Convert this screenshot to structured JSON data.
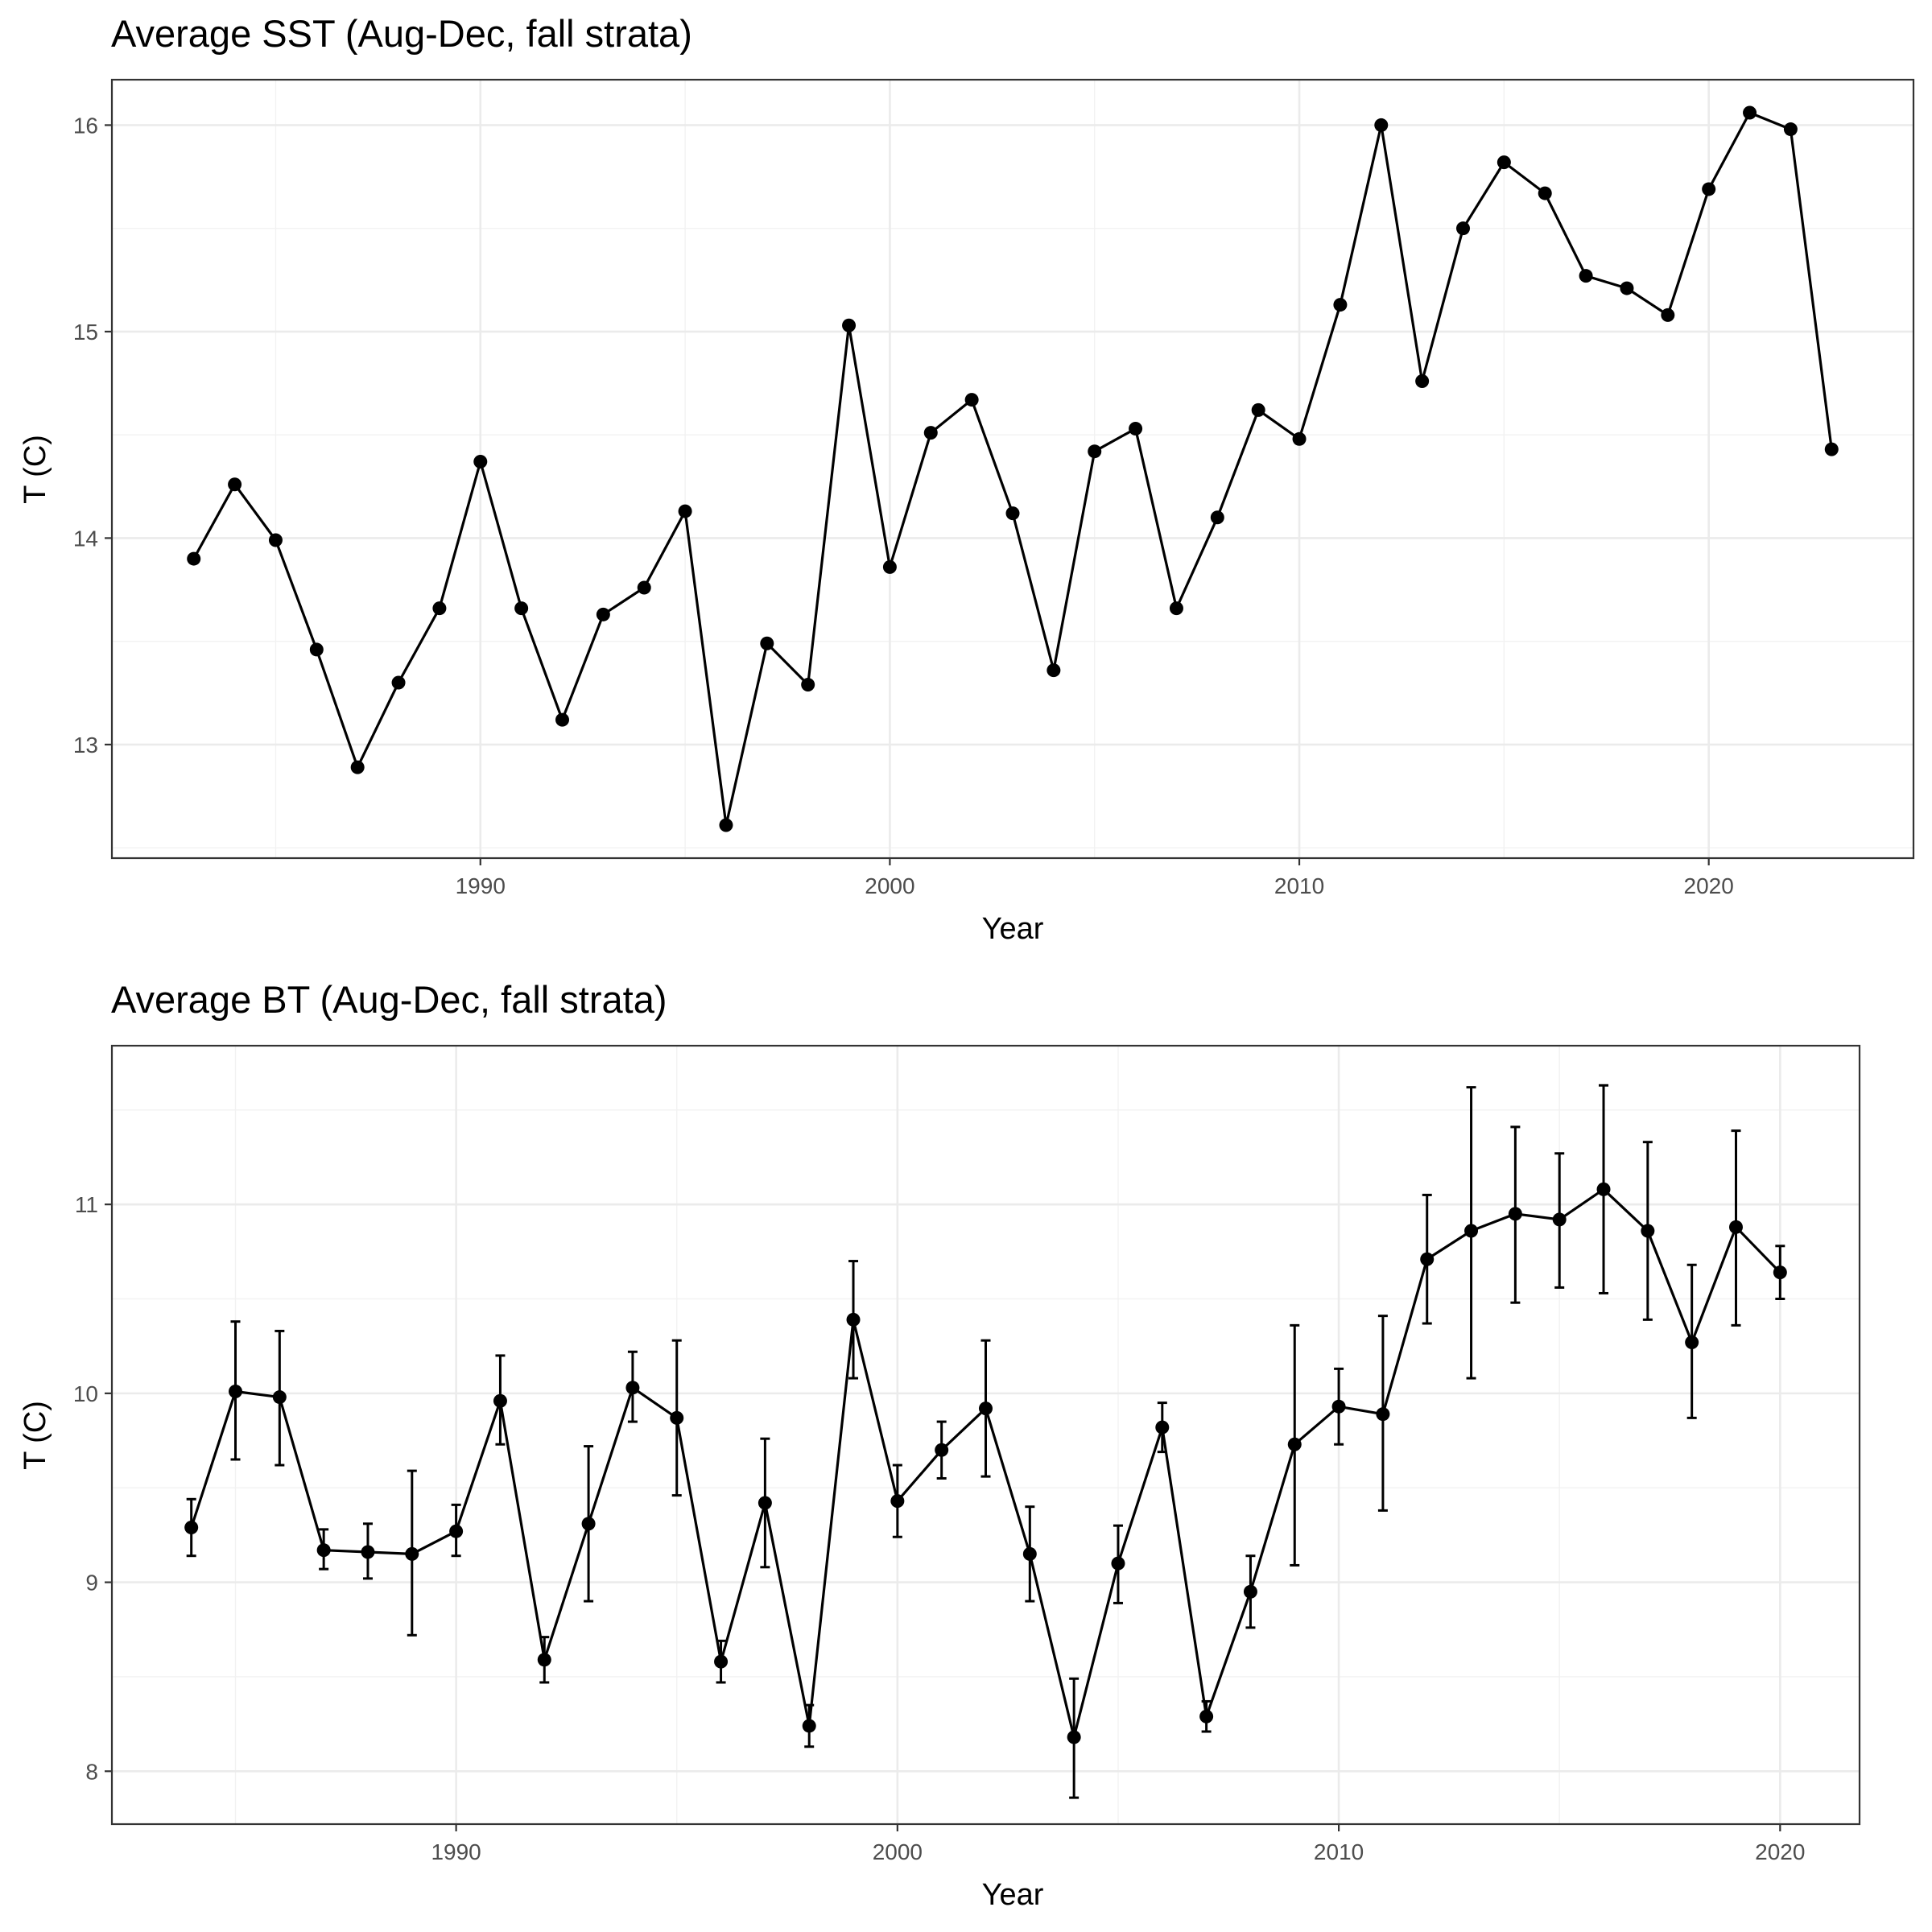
{
  "chart_data": [
    {
      "type": "line",
      "title": "Average SST (Aug-Dec, fall strata)",
      "xlabel": "Year",
      "ylabel": "T (C)",
      "xlim": [
        1981,
        2025
      ],
      "ylim": [
        12.45,
        16.22
      ],
      "x_ticks": [
        1990,
        2000,
        2010,
        2020
      ],
      "y_ticks": [
        13,
        14,
        15,
        16
      ],
      "grid": true,
      "legend": "none",
      "series": [
        {
          "x": [
            1983,
            1984,
            1985,
            1986,
            1987,
            1988,
            1989,
            1990,
            1991,
            1992,
            1993,
            1994,
            1995,
            1996,
            1997,
            1998,
            1999,
            2000,
            2001,
            2002,
            2003,
            2004,
            2005,
            2006,
            2007,
            2008,
            2009,
            2010,
            2011,
            2012,
            2013,
            2014,
            2015,
            2016,
            2017,
            2018,
            2019,
            2020,
            2021,
            2022,
            2023
          ],
          "y": [
            13.9,
            14.26,
            13.99,
            13.46,
            12.89,
            13.3,
            13.66,
            14.37,
            13.66,
            13.12,
            13.63,
            13.76,
            14.13,
            12.61,
            13.49,
            13.29,
            15.03,
            13.86,
            14.51,
            14.67,
            14.12,
            13.36,
            14.42,
            14.53,
            13.66,
            14.1,
            14.62,
            14.48,
            15.13,
            16.0,
            14.76,
            15.5,
            15.82,
            15.67,
            15.27,
            15.21,
            15.08,
            15.69,
            16.06,
            15.98,
            14.43
          ]
        }
      ]
    },
    {
      "type": "line",
      "title": "Average BT (Aug-Dec, fall strata)",
      "xlabel": "Year",
      "ylabel": "T (C)",
      "xlim": [
        1982.2,
        2021.8
      ],
      "ylim": [
        7.72,
        11.84
      ],
      "x_ticks": [
        1990,
        2000,
        2010,
        2020
      ],
      "y_ticks": [
        8,
        9,
        10,
        11
      ],
      "grid": true,
      "legend": "none",
      "series": [
        {
          "x": [
            1984,
            1985,
            1986,
            1987,
            1988,
            1989,
            1990,
            1991,
            1992,
            1993,
            1994,
            1995,
            1996,
            1997,
            1998,
            1999,
            2000,
            2001,
            2002,
            2003,
            2004,
            2005,
            2006,
            2007,
            2008,
            2009,
            2010,
            2011,
            2012,
            2013,
            2014,
            2015,
            2016,
            2017,
            2018,
            2019,
            2020
          ],
          "y": [
            9.29,
            10.01,
            9.98,
            9.17,
            9.16,
            9.15,
            9.27,
            9.96,
            8.59,
            9.31,
            10.03,
            9.87,
            8.58,
            9.42,
            8.24,
            10.39,
            9.43,
            9.7,
            9.92,
            9.15,
            8.18,
            9.1,
            9.82,
            8.29,
            8.95,
            9.73,
            9.93,
            9.89,
            10.71,
            10.86,
            10.95,
            10.92,
            11.08,
            10.86,
            10.27,
            10.88,
            10.64
          ],
          "error_low": [
            9.14,
            9.65,
            9.62,
            9.07,
            9.02,
            8.72,
            9.14,
            9.73,
            8.47,
            8.9,
            9.85,
            9.46,
            8.47,
            9.08,
            8.13,
            10.08,
            9.24,
            9.55,
            9.56,
            8.9,
            7.86,
            8.89,
            9.69,
            8.21,
            8.76,
            9.09,
            9.73,
            9.38,
            10.37,
            10.08,
            10.48,
            10.56,
            10.53,
            10.39,
            9.87,
            10.36,
            10.5
          ],
          "error_high": [
            9.44,
            10.38,
            10.33,
            9.28,
            9.31,
            9.59,
            9.41,
            10.2,
            8.71,
            9.72,
            10.22,
            10.28,
            8.69,
            9.76,
            8.35,
            10.7,
            9.62,
            9.85,
            10.28,
            9.4,
            8.49,
            9.3,
            9.95,
            8.37,
            9.14,
            10.36,
            10.13,
            10.41,
            11.05,
            11.62,
            11.41,
            11.27,
            11.63,
            11.33,
            10.68,
            11.39,
            10.78
          ]
        }
      ]
    }
  ]
}
